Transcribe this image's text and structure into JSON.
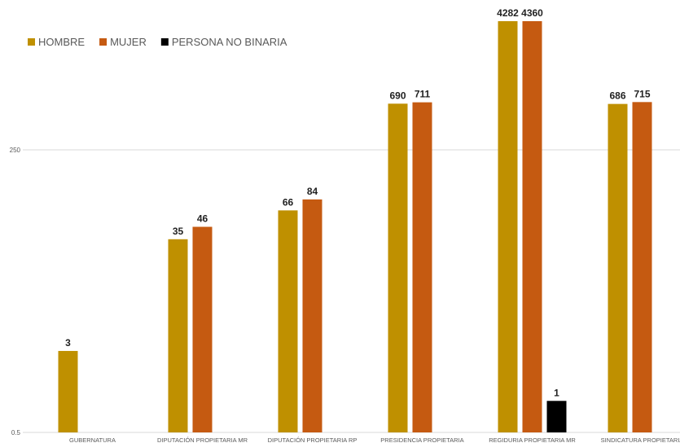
{
  "chart_data": {
    "type": "bar",
    "scale": "log",
    "categories": [
      "GUBERNATURA",
      "DIPUTACIÓN PROPIETARIA MR",
      "DIPUTACIÓN PROPIETARIA RP",
      "PRESIDENCIA PROPIETARIA",
      "REGIDURIA PROPIETARIA MR",
      "SINDICATURA PROPIETARIA"
    ],
    "series": [
      {
        "name": "HOMBRE",
        "color": "#BF9000",
        "values": [
          3,
          35,
          66,
          690,
          4282,
          686
        ]
      },
      {
        "name": "MUJER",
        "color": "#C55A11",
        "values": [
          null,
          46,
          84,
          711,
          4360,
          715
        ]
      },
      {
        "name": "PERSONA NO BINARIA",
        "color": "#000000",
        "values": [
          null,
          null,
          null,
          null,
          1,
          null
        ]
      }
    ],
    "y_ticks": [
      "250",
      "0.5"
    ],
    "y_tick_values": [
      250,
      0.5
    ],
    "grid": true,
    "legend_position": "top-left"
  }
}
